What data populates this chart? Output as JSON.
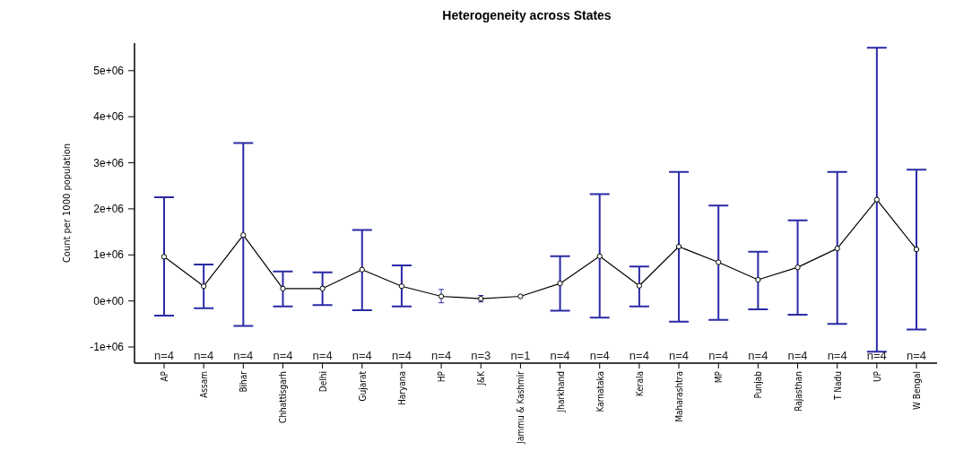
{
  "chart_data": {
    "type": "line",
    "title": "Heterogeneity across States",
    "ylabel": "Count per 1000 population",
    "categories": [
      "AP",
      "Assam",
      "Bihar",
      "Chhattisgarh",
      "Delhi",
      "Gujarat",
      "Haryana",
      "HP",
      "J&K",
      "Jammu & Kashmir",
      "Jharkhand",
      "Karnataka",
      "Kerala",
      "Maharashtra",
      "MP",
      "Punjab",
      "Rajasthan",
      "T Nadu",
      "UP",
      "W Bengal"
    ],
    "series": [
      {
        "color": "#000000",
        "values": [
          960000,
          320000,
          1430000,
          270000,
          270000,
          680000,
          320000,
          100000,
          50000,
          100000,
          380000,
          970000,
          330000,
          1180000,
          840000,
          460000,
          730000,
          1140000,
          2200000,
          1120000
        ],
        "errors": [
          [
            -320000,
            2250000
          ],
          [
            -160000,
            790000
          ],
          [
            -540000,
            3430000
          ],
          [
            -120000,
            640000
          ],
          [
            -90000,
            620000
          ],
          [
            -200000,
            1540000
          ],
          [
            -120000,
            770000
          ],
          [
            -40000,
            250000
          ],
          [
            -20000,
            120000
          ],
          null,
          [
            -210000,
            970000
          ],
          [
            -360000,
            2320000
          ],
          [
            -120000,
            750000
          ],
          [
            -450000,
            2800000
          ],
          [
            -410000,
            2070000
          ],
          [
            -180000,
            1070000
          ],
          [
            -300000,
            1750000
          ],
          [
            -500000,
            2800000
          ],
          [
            -1100000,
            5500000
          ],
          [
            -620000,
            2850000
          ]
        ]
      }
    ],
    "ylim": [
      -1350000,
      5600000
    ],
    "yticks": [
      {
        "value": -1000000,
        "label": "-1e+06"
      },
      {
        "value": 0,
        "label": "0e+00"
      },
      {
        "value": 1000000,
        "label": "1e+06"
      },
      {
        "value": 2000000,
        "label": "2e+06"
      },
      {
        "value": 3000000,
        "label": "3e+06"
      },
      {
        "value": 4000000,
        "label": "4e+06"
      },
      {
        "value": 5000000,
        "label": "5e+06"
      }
    ],
    "annotations": [
      "n=4",
      "n=4",
      "n=4",
      "n=4",
      "n=4",
      "n=4",
      "n=4",
      "n=4",
      "n=3",
      "n=1",
      "n=4",
      "n=4",
      "n=4",
      "n=4",
      "n=4",
      "n=4",
      "n=4",
      "n=4",
      "n=4",
      "n=4"
    ],
    "marker": "circle"
  }
}
